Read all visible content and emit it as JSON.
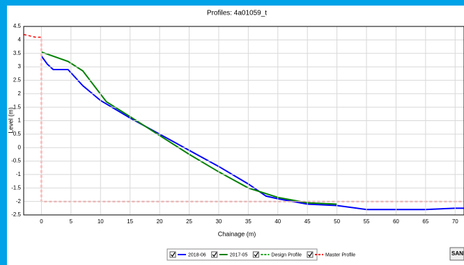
{
  "chart_data": {
    "type": "line",
    "title": "Profiles: 4a01059_t",
    "xlabel": "Chainage (m)",
    "ylabel": "Level (m)",
    "xlim": [
      -3,
      71.5
    ],
    "ylim": [
      -2.5,
      4.5
    ],
    "xticks": [
      0,
      5,
      10,
      15,
      20,
      25,
      30,
      35,
      40,
      45,
      50,
      55,
      60,
      65,
      70
    ],
    "yticks": [
      4.5,
      4,
      3.5,
      3,
      2.5,
      2,
      1.5,
      1,
      0.5,
      0,
      -0.5,
      -1,
      -1.5,
      -2,
      -2.5
    ],
    "grid": true,
    "legend": "bottom",
    "series": [
      {
        "name": "2018-06",
        "color": "#0000ff",
        "dash": false,
        "x": [
          0,
          1,
          2,
          4.5,
          7,
          10,
          15,
          20,
          25,
          30,
          35,
          38,
          40,
          45,
          50,
          55,
          60,
          65,
          70,
          71.5
        ],
        "values": [
          3.4,
          3.1,
          2.9,
          2.9,
          2.3,
          1.75,
          1.1,
          0.5,
          -0.1,
          -0.7,
          -1.35,
          -1.8,
          -1.9,
          -2.1,
          -2.15,
          -2.3,
          -2.3,
          -2.3,
          -2.25,
          -2.25
        ]
      },
      {
        "name": "2017-05",
        "color": "#008000",
        "dash": false,
        "x": [
          0,
          4.5,
          7,
          11,
          15,
          20,
          25,
          30,
          35,
          40,
          45,
          50
        ],
        "values": [
          3.55,
          3.2,
          2.85,
          1.7,
          1.15,
          0.45,
          -0.25,
          -0.9,
          -1.5,
          -1.85,
          -2.05,
          -2.1
        ]
      },
      {
        "name": "Design Profile",
        "color": "#00a000",
        "dash": true,
        "x": [],
        "values": []
      },
      {
        "name": "Master Profile",
        "color": "#ff0000",
        "dash": true,
        "x": [
          -3,
          -1,
          0,
          0,
          71.5
        ],
        "values": [
          4.2,
          4.1,
          4.1,
          -2,
          -2
        ]
      }
    ]
  },
  "logo": "SANDS"
}
